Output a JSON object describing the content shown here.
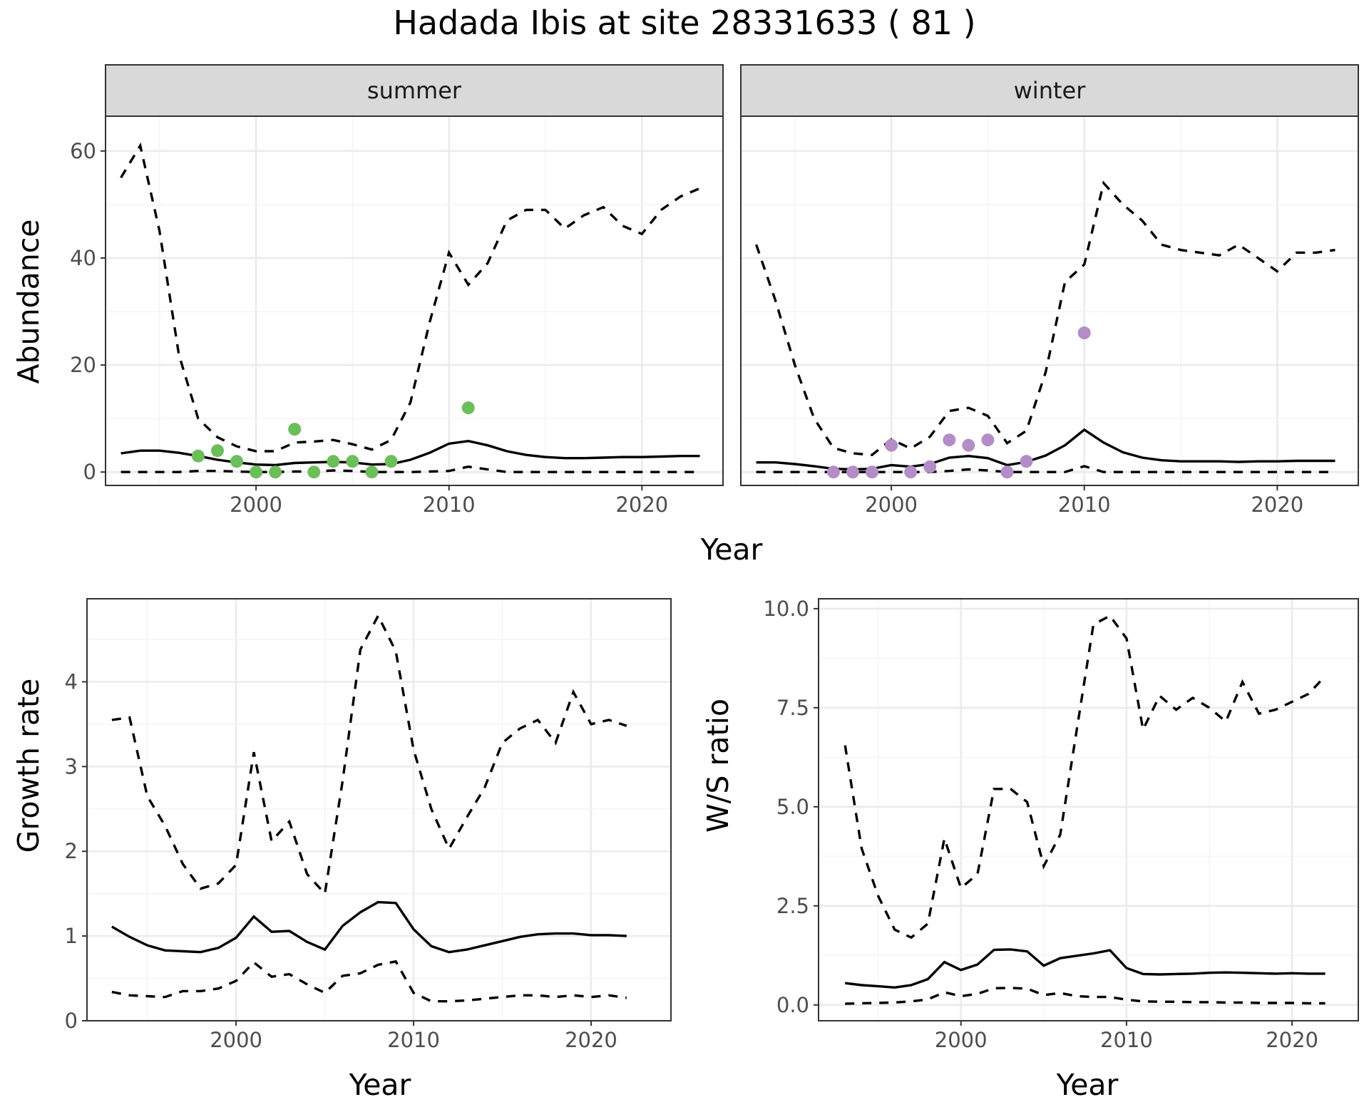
{
  "title": "Hadada Ibis at site 28331633 ( 81 )",
  "chart_data": [
    {
      "id": "summer",
      "type": "line",
      "panel_label": "summer",
      "xlabel": "Year",
      "ylabel": "Abundance",
      "xlim": [
        1992.2,
        2024.2
      ],
      "ylim": [
        -2.5,
        66.5
      ],
      "xticks": [
        2000,
        2010,
        2020
      ],
      "yticks": [
        0,
        20,
        40,
        60
      ],
      "point_color": "#6bbf59",
      "mid": {
        "x": [
          1993,
          1994,
          1995,
          1996,
          1997,
          1998,
          1999,
          2000,
          2001,
          2002,
          2003,
          2004,
          2005,
          2006,
          2007,
          2008,
          2009,
          2010,
          2011,
          2012,
          2013,
          2014,
          2015,
          2016,
          2017,
          2018,
          2019,
          2020,
          2021,
          2022,
          2023
        ],
        "y": [
          3.5,
          4.0,
          4.0,
          3.6,
          3.0,
          2.3,
          1.8,
          1.4,
          1.3,
          1.7,
          1.8,
          1.9,
          1.8,
          1.4,
          1.5,
          2.3,
          3.6,
          5.3,
          5.8,
          5.0,
          3.9,
          3.2,
          2.8,
          2.6,
          2.6,
          2.7,
          2.8,
          2.8,
          2.9,
          3.0,
          3.0
        ]
      },
      "upper": {
        "x": [
          1993,
          1994,
          1995,
          1996,
          1997,
          1998,
          1999,
          2000,
          2001,
          2002,
          2003,
          2004,
          2005,
          2006,
          2007,
          2008,
          2009,
          2010,
          2011,
          2012,
          2013,
          2014,
          2015,
          2016,
          2017,
          2018,
          2019,
          2020,
          2021,
          2022,
          2023
        ],
        "y": [
          55,
          61,
          45,
          22,
          10,
          6.5,
          4.8,
          3.9,
          3.9,
          5.5,
          5.7,
          6.0,
          5.2,
          4.2,
          6.0,
          13,
          28,
          41,
          35,
          39,
          47,
          49,
          49,
          45.5,
          48,
          49.5,
          46,
          44.5,
          49,
          51.5,
          53
        ]
      },
      "lower": {
        "x": [
          1993,
          1994,
          1995,
          1996,
          1997,
          1998,
          1999,
          2000,
          2001,
          2002,
          2003,
          2004,
          2005,
          2006,
          2007,
          2008,
          2009,
          2010,
          2011,
          2012,
          2013,
          2014,
          2015,
          2016,
          2017,
          2018,
          2019,
          2020,
          2021,
          2022,
          2023
        ],
        "y": [
          0,
          0,
          0,
          0,
          0.2,
          0.2,
          0.1,
          0,
          0,
          0.1,
          0.1,
          0.3,
          0.2,
          0,
          0,
          0,
          0.1,
          0.2,
          1.0,
          0.5,
          0,
          0,
          0,
          0,
          0,
          0,
          0,
          0,
          0,
          0,
          0
        ]
      },
      "points": {
        "x": [
          1997,
          1998,
          1999,
          2000,
          2001,
          2002,
          2003,
          2004,
          2005,
          2006,
          2007,
          2011
        ],
        "y": [
          3,
          4,
          2,
          0,
          0,
          8,
          0,
          2,
          2,
          0,
          2,
          12
        ]
      }
    },
    {
      "id": "winter",
      "type": "line",
      "panel_label": "winter",
      "xlabel": "Year",
      "ylabel": "",
      "xlim": [
        1992.2,
        2024.2
      ],
      "ylim": [
        -2.5,
        66.5
      ],
      "xticks": [
        2000,
        2010,
        2020
      ],
      "yticks": [],
      "point_color": "#b48cc8",
      "mid": {
        "x": [
          1993,
          1994,
          1995,
          1996,
          1997,
          1998,
          1999,
          2000,
          2001,
          2002,
          2003,
          2004,
          2005,
          2006,
          2007,
          2008,
          2009,
          2010,
          2011,
          2012,
          2013,
          2014,
          2015,
          2016,
          2017,
          2018,
          2019,
          2020,
          2021,
          2022,
          2023
        ],
        "y": [
          1.8,
          1.8,
          1.5,
          1.1,
          0.6,
          0.5,
          0.6,
          1.3,
          1.0,
          1.5,
          2.7,
          3.0,
          2.6,
          1.3,
          1.9,
          3.1,
          5.0,
          7.9,
          5.5,
          3.7,
          2.7,
          2.2,
          2.0,
          2.0,
          2.0,
          1.9,
          2.0,
          2.0,
          2.1,
          2.1,
          2.1
        ]
      },
      "upper": {
        "x": [
          1993,
          1994,
          1995,
          1996,
          1997,
          1998,
          1999,
          2000,
          2001,
          2002,
          2003,
          2004,
          2005,
          2006,
          2007,
          2008,
          2009,
          2010,
          2011,
          2012,
          2013,
          2014,
          2015,
          2016,
          2017,
          2018,
          2019,
          2020,
          2021,
          2022,
          2023
        ],
        "y": [
          42.5,
          32,
          20,
          10,
          4.5,
          3.5,
          3.2,
          6.1,
          4.4,
          6.6,
          11.4,
          12.0,
          10.5,
          5.4,
          7.7,
          18.7,
          35.5,
          38.8,
          54,
          50,
          47,
          42.5,
          41.5,
          41,
          40.5,
          42.5,
          40,
          37.5,
          41,
          41,
          41.5
        ]
      },
      "lower": {
        "x": [
          1993,
          1994,
          1995,
          1996,
          1997,
          1998,
          1999,
          2000,
          2001,
          2002,
          2003,
          2004,
          2005,
          2006,
          2007,
          2008,
          2009,
          2010,
          2011,
          2012,
          2013,
          2014,
          2015,
          2016,
          2017,
          2018,
          2019,
          2020,
          2021,
          2022,
          2023
        ],
        "y": [
          0,
          0,
          0,
          0,
          0,
          0,
          0,
          0,
          0,
          0,
          0.2,
          0.5,
          0.3,
          0,
          0,
          0,
          0,
          1.1,
          0,
          0,
          0,
          0,
          0,
          0,
          0,
          0,
          0,
          0,
          0,
          0,
          0
        ]
      },
      "points": {
        "x": [
          1997,
          1998,
          1999,
          2000,
          2001,
          2002,
          2003,
          2004,
          2005,
          2006,
          2007,
          2010
        ],
        "y": [
          0,
          0,
          0,
          5,
          0,
          1,
          6,
          5,
          6,
          0,
          2,
          26
        ]
      }
    },
    {
      "id": "growth",
      "type": "line",
      "xlabel": "Year",
      "ylabel": "Growth rate",
      "xlim": [
        1991.6,
        2024.5
      ],
      "ylim": [
        0,
        4.98
      ],
      "xticks": [
        2000,
        2010,
        2020
      ],
      "yticks": [
        0,
        1,
        2,
        3,
        4
      ],
      "mid": {
        "x": [
          1993,
          1994,
          1995,
          1996,
          1997,
          1998,
          1999,
          2000,
          2001,
          2002,
          2003,
          2004,
          2005,
          2006,
          2007,
          2008,
          2009,
          2010,
          2011,
          2012,
          2013,
          2014,
          2015,
          2016,
          2017,
          2018,
          2019,
          2020,
          2021,
          2022
        ],
        "y": [
          1.11,
          0.99,
          0.89,
          0.83,
          0.82,
          0.81,
          0.86,
          0.98,
          1.23,
          1.05,
          1.06,
          0.93,
          0.84,
          1.12,
          1.28,
          1.4,
          1.39,
          1.08,
          0.88,
          0.81,
          0.84,
          0.89,
          0.94,
          0.99,
          1.02,
          1.03,
          1.03,
          1.01,
          1.01,
          1.0
        ]
      },
      "upper": {
        "x": [
          1993,
          1994,
          1995,
          1996,
          1997,
          1998,
          1999,
          2000,
          2001,
          2002,
          2003,
          2004,
          2005,
          2006,
          2007,
          2008,
          2009,
          2010,
          2011,
          2012,
          2013,
          2014,
          2015,
          2016,
          2017,
          2018,
          2019,
          2020,
          2021,
          2022
        ],
        "y": [
          3.55,
          3.58,
          2.65,
          2.3,
          1.85,
          1.56,
          1.62,
          1.84,
          3.17,
          2.12,
          2.35,
          1.73,
          1.5,
          2.83,
          4.38,
          4.78,
          4.36,
          3.2,
          2.5,
          2.03,
          2.4,
          2.75,
          3.28,
          3.45,
          3.55,
          3.28,
          3.88,
          3.5,
          3.55,
          3.48
        ]
      },
      "lower": {
        "x": [
          1993,
          1994,
          1995,
          1996,
          1997,
          1998,
          1999,
          2000,
          2001,
          2002,
          2003,
          2004,
          2005,
          2006,
          2007,
          2008,
          2009,
          2010,
          2011,
          2012,
          2013,
          2014,
          2015,
          2016,
          2017,
          2018,
          2019,
          2020,
          2021,
          2022
        ],
        "y": [
          0.34,
          0.3,
          0.29,
          0.28,
          0.35,
          0.35,
          0.38,
          0.47,
          0.69,
          0.52,
          0.55,
          0.43,
          0.33,
          0.53,
          0.56,
          0.66,
          0.7,
          0.33,
          0.23,
          0.23,
          0.24,
          0.26,
          0.28,
          0.3,
          0.3,
          0.28,
          0.3,
          0.28,
          0.3,
          0.27
        ]
      }
    },
    {
      "id": "ratio",
      "type": "line",
      "xlabel": "Year",
      "ylabel": "W/S ratio",
      "xlim": [
        1991.4,
        2024.0
      ],
      "ylim": [
        -0.4,
        10.25
      ],
      "xticks": [
        2000,
        2010,
        2020
      ],
      "yticks": [
        0.0,
        2.5,
        5.0,
        7.5,
        10.0
      ],
      "ytick_labels": [
        "0.0",
        "2.5",
        "5.0",
        "7.5",
        "10.0"
      ],
      "mid": {
        "x": [
          1993,
          1994,
          1995,
          1996,
          1997,
          1998,
          1999,
          2000,
          2001,
          2002,
          2003,
          2004,
          2005,
          2006,
          2007,
          2008,
          2009,
          2010,
          2011,
          2012,
          2013,
          2014,
          2015,
          2016,
          2017,
          2018,
          2019,
          2020,
          2021,
          2022
        ],
        "y": [
          0.55,
          0.5,
          0.47,
          0.44,
          0.5,
          0.65,
          1.08,
          0.88,
          1.02,
          1.39,
          1.4,
          1.35,
          0.99,
          1.18,
          1.24,
          1.3,
          1.38,
          0.93,
          0.78,
          0.77,
          0.78,
          0.79,
          0.81,
          0.82,
          0.81,
          0.8,
          0.79,
          0.8,
          0.79,
          0.79
        ]
      },
      "upper": {
        "x": [
          1993,
          1994,
          1995,
          1996,
          1997,
          1998,
          1999,
          2000,
          2001,
          2002,
          2003,
          2004,
          2005,
          2006,
          2007,
          2008,
          2009,
          2010,
          2011,
          2012,
          2013,
          2014,
          2015,
          2016,
          2017,
          2018,
          2019,
          2020,
          2021,
          2022
        ],
        "y": [
          6.55,
          3.95,
          2.75,
          1.9,
          1.7,
          2.05,
          4.2,
          2.95,
          3.3,
          5.45,
          5.45,
          5.12,
          3.5,
          4.3,
          6.95,
          9.6,
          9.82,
          9.25,
          6.95,
          7.8,
          7.45,
          7.75,
          7.5,
          7.15,
          8.15,
          7.35,
          7.45,
          7.65,
          7.85,
          8.3
        ]
      },
      "lower": {
        "x": [
          1993,
          1994,
          1995,
          1996,
          1997,
          1998,
          1999,
          2000,
          2001,
          2002,
          2003,
          2004,
          2005,
          2006,
          2007,
          2008,
          2009,
          2010,
          2011,
          2012,
          2013,
          2014,
          2015,
          2016,
          2017,
          2018,
          2019,
          2020,
          2021,
          2022
        ],
        "y": [
          0.03,
          0.04,
          0.05,
          0.06,
          0.09,
          0.14,
          0.32,
          0.22,
          0.28,
          0.42,
          0.43,
          0.41,
          0.25,
          0.3,
          0.22,
          0.2,
          0.2,
          0.13,
          0.09,
          0.08,
          0.08,
          0.07,
          0.07,
          0.06,
          0.06,
          0.05,
          0.05,
          0.05,
          0.04,
          0.04
        ]
      }
    }
  ]
}
